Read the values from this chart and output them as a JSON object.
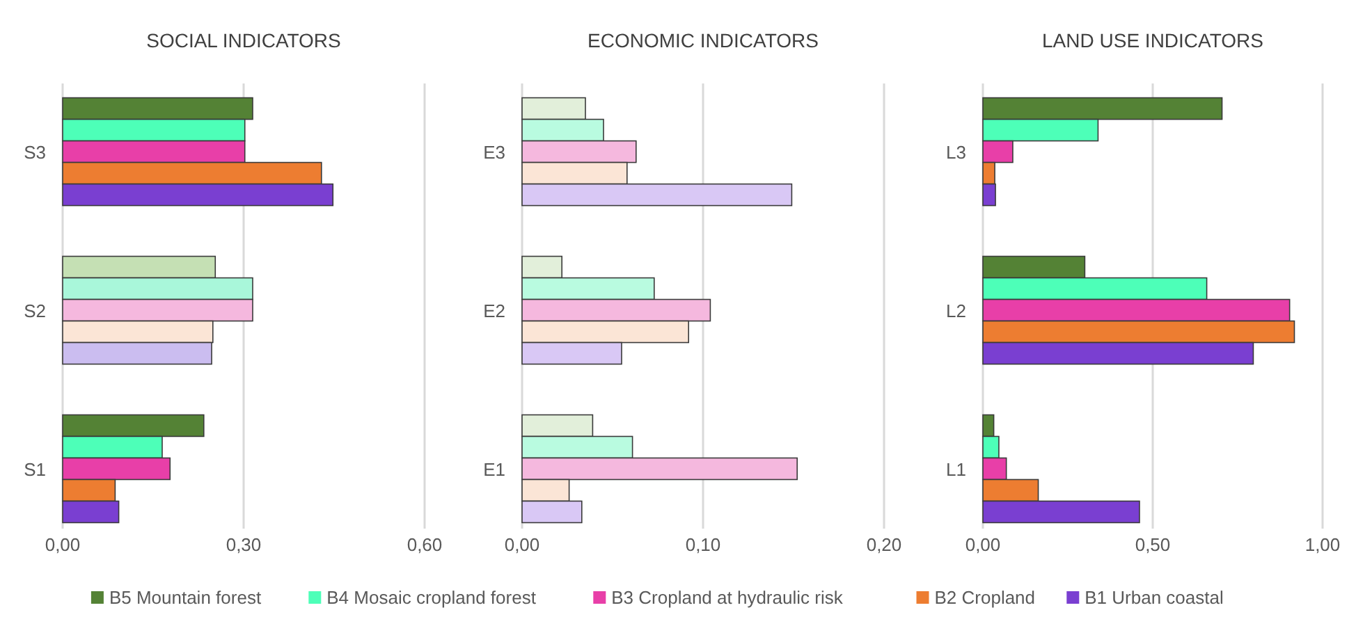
{
  "chart_data": [
    {
      "type": "bar",
      "orientation": "horizontal",
      "title": "SOCIAL INDICATORS",
      "categories": [
        "S3",
        "S2",
        "S1"
      ],
      "xlim": [
        0,
        0.6
      ],
      "xticks": [
        {
          "value": 0,
          "label": "0,00"
        },
        {
          "value": 0.3,
          "label": "0,30"
        },
        {
          "value": 0.6,
          "label": "0,60"
        }
      ],
      "grid": "x",
      "legend": "bottom",
      "series": [
        {
          "name": "B5 Mountain forest",
          "color": "#548235",
          "colors": [
            "#548235",
            "#c5e0b4",
            "#548235"
          ],
          "values": [
            0.315,
            0.253,
            0.234
          ]
        },
        {
          "name": "B4 Mosaic cropland forest",
          "color": "#4dffb8",
          "colors": [
            "#4dffb8",
            "#a9f7da",
            "#4dffb8"
          ],
          "values": [
            0.302,
            0.315,
            0.165
          ]
        },
        {
          "name": "B3 Cropland at hydraulic risk",
          "color": "#e83fa8",
          "colors": [
            "#e83fa8",
            "#f5b8de",
            "#e83fa8"
          ],
          "values": [
            0.302,
            0.315,
            0.178
          ]
        },
        {
          "name": "B2 Cropland",
          "color": "#ed7d31",
          "colors": [
            "#ed7d31",
            "#fbe5d6",
            "#ed7d31"
          ],
          "values": [
            0.429,
            0.249,
            0.087
          ]
        },
        {
          "name": "B1 Urban coastal",
          "color": "#7a3fd1",
          "colors": [
            "#7a3fd1",
            "#cbbdf0",
            "#7a3fd1"
          ],
          "values": [
            0.448,
            0.247,
            0.093
          ]
        }
      ]
    },
    {
      "type": "bar",
      "orientation": "horizontal",
      "title": "ECONOMIC INDICATORS",
      "categories": [
        "E3",
        "E2",
        "E1"
      ],
      "xlim": [
        0,
        0.2
      ],
      "xticks": [
        {
          "value": 0,
          "label": "0,00"
        },
        {
          "value": 0.1,
          "label": "0,10"
        },
        {
          "value": 0.2,
          "label": "0,20"
        }
      ],
      "grid": "x",
      "series": [
        {
          "color": "#e2efda",
          "values": [
            0.035,
            0.022,
            0.039
          ]
        },
        {
          "color": "#b9fbe0",
          "values": [
            0.045,
            0.073,
            0.061
          ]
        },
        {
          "color": "#f5b8de",
          "values": [
            0.063,
            0.104,
            0.152
          ]
        },
        {
          "color": "#fbe5d6",
          "values": [
            0.058,
            0.092,
            0.026
          ]
        },
        {
          "color": "#d9c8f5",
          "values": [
            0.149,
            0.055,
            0.033
          ]
        }
      ]
    },
    {
      "type": "bar",
      "orientation": "horizontal",
      "title": "LAND USE INDICATORS",
      "categories": [
        "L3",
        "L2",
        "L1"
      ],
      "xlim": [
        0,
        1
      ],
      "xticks": [
        {
          "value": 0,
          "label": "0,00"
        },
        {
          "value": 0.5,
          "label": "0,50"
        },
        {
          "value": 1,
          "label": "1,00"
        }
      ],
      "grid": "x",
      "series": [
        {
          "color": "#548235",
          "values": [
            0.704,
            0.3,
            0.032
          ]
        },
        {
          "color": "#4dffb8",
          "values": [
            0.339,
            0.659,
            0.047
          ]
        },
        {
          "color": "#e83fa8",
          "values": [
            0.088,
            0.903,
            0.069
          ]
        },
        {
          "color": "#ed7d31",
          "values": [
            0.035,
            0.917,
            0.163
          ]
        },
        {
          "color": "#7a3fd1",
          "values": [
            0.037,
            0.796,
            0.461
          ]
        }
      ]
    }
  ]
}
